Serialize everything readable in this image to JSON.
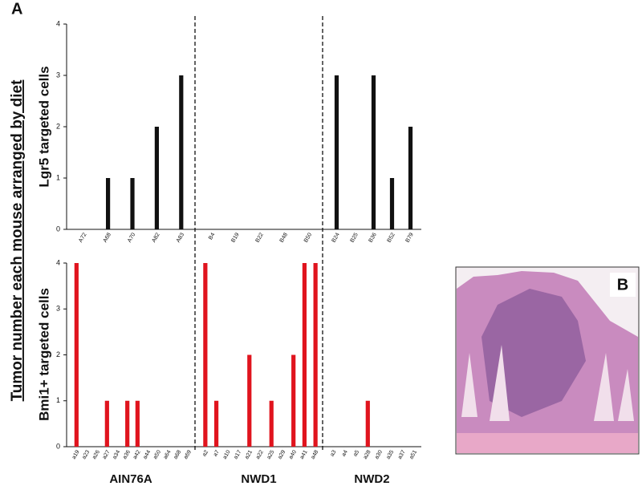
{
  "figure": {
    "panel_a": "A",
    "panel_b": "B",
    "ylabel": "Tumor number each mouse arranged by diet"
  },
  "chart_data": [
    {
      "type": "bar",
      "ylabel": "Lgr5 targeted cells",
      "color": "#111111",
      "ylim": [
        0,
        4
      ],
      "yticks": [
        0,
        1,
        2,
        3,
        4
      ],
      "groups": [
        {
          "categories": [
            "A72",
            "A68",
            "A70",
            "A82",
            "A83"
          ],
          "values": [
            0,
            1,
            1,
            2,
            3
          ]
        },
        {
          "categories": [
            "B4",
            "B19",
            "B22",
            "B48",
            "B50"
          ],
          "values": [
            0,
            0,
            0,
            0,
            0
          ]
        },
        {
          "categories": [
            "B24",
            "B25",
            "B36",
            "B52",
            "B79"
          ],
          "values": [
            3,
            0,
            3,
            1,
            2
          ]
        }
      ]
    },
    {
      "type": "bar",
      "ylabel": "Bmi1+ targeted cells",
      "color": "#e0141e",
      "ylim": [
        0,
        4
      ],
      "yticks": [
        0,
        1,
        2,
        3,
        4
      ],
      "groups": [
        {
          "name": "AIN76A",
          "categories": [
            "a19",
            "a23",
            "a26",
            "a27",
            "a34",
            "a36",
            "a42",
            "a44",
            "a50",
            "a64",
            "a68",
            "a69"
          ],
          "values": [
            4,
            0,
            0,
            1,
            0,
            1,
            1,
            0,
            0,
            0,
            0,
            0
          ]
        },
        {
          "name": "NWD1",
          "categories": [
            "a2",
            "a7",
            "a10",
            "a17",
            "a21",
            "a22",
            "a25",
            "a29",
            "a40",
            "a41",
            "a48"
          ],
          "values": [
            4,
            1,
            0,
            0,
            2,
            0,
            1,
            0,
            2,
            4,
            4
          ]
        },
        {
          "name": "NWD2",
          "categories": [
            "a3",
            "a4",
            "a5",
            "a28",
            "a30",
            "a35",
            "a37",
            "a51"
          ],
          "values": [
            0,
            0,
            0,
            1,
            0,
            0,
            0,
            0
          ]
        }
      ]
    }
  ]
}
